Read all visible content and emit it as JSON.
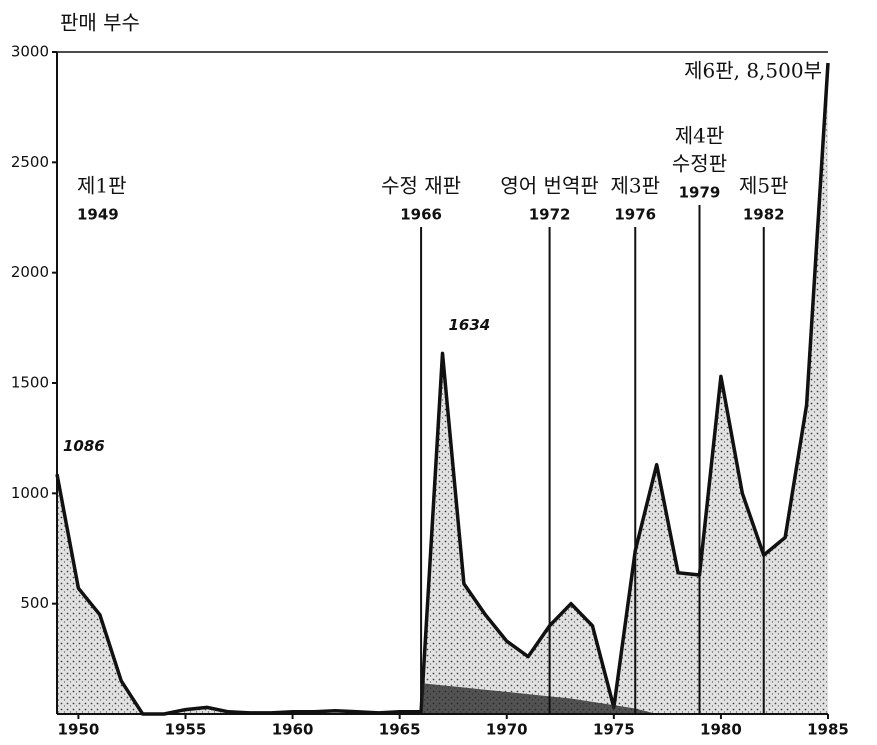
{
  "chart_data": {
    "type": "area",
    "y_label": "판매 부수",
    "x": [
      1949,
      1950,
      1951,
      1952,
      1953,
      1954,
      1955,
      1956,
      1957,
      1958,
      1959,
      1960,
      1961,
      1962,
      1963,
      1964,
      1965,
      1966,
      1967,
      1968,
      1969,
      1970,
      1971,
      1972,
      1973,
      1974,
      1975,
      1976,
      1977,
      1978,
      1979,
      1980,
      1981,
      1982,
      1983,
      1984,
      1985
    ],
    "series": [
      {
        "color": "#111111",
        "values": [
          1086,
          570,
          450,
          150,
          0,
          0,
          20,
          30,
          10,
          5,
          5,
          10,
          10,
          15,
          10,
          5,
          10,
          10,
          1634,
          590,
          450,
          330,
          260,
          400,
          500,
          400,
          30,
          740,
          1130,
          640,
          630,
          1530,
          1000,
          720,
          800,
          1400,
          2950
        ],
        "value_labels": [
          "1086",
          null,
          null,
          null,
          null,
          null,
          null,
          null,
          null,
          null,
          null,
          null,
          null,
          null,
          null,
          null,
          null,
          null,
          "1634",
          null,
          null,
          null,
          null,
          null,
          null,
          null,
          null,
          null,
          null,
          null,
          null,
          null,
          null,
          null,
          null,
          null,
          null
        ]
      },
      {
        "color": "#222222",
        "values": [
          null,
          null,
          null,
          null,
          null,
          null,
          null,
          null,
          null,
          null,
          null,
          null,
          null,
          null,
          null,
          null,
          null,
          140,
          130,
          120,
          110,
          100,
          90,
          80,
          70,
          55,
          40,
          25,
          0,
          null,
          null,
          null,
          null,
          null,
          null,
          null,
          null
        ]
      }
    ],
    "annotations": [
      {
        "label": [
          "제1판"
        ],
        "x": 1949,
        "line": false
      },
      {
        "label": [
          "수정  재판"
        ],
        "x": 1966,
        "line": true
      },
      {
        "label": [
          "영어  번역판"
        ],
        "x": 1972,
        "line": true
      },
      {
        "label": [
          "제3판"
        ],
        "x": 1976,
        "line": true
      },
      {
        "label": [
          "제4판",
          "수정판"
        ],
        "x": 1979,
        "line": true
      },
      {
        "label": [
          "제5판"
        ],
        "x": 1982,
        "line": true
      }
    ],
    "note": "제6판, 8,500부",
    "xlim": [
      1949,
      1985
    ],
    "xticks": [
      1950,
      1955,
      1960,
      1965,
      1970,
      1975,
      1980,
      1985
    ],
    "ylim": [
      0,
      3000
    ],
    "yticks": [
      500,
      1000,
      1500,
      2000,
      2500,
      3000
    ]
  }
}
